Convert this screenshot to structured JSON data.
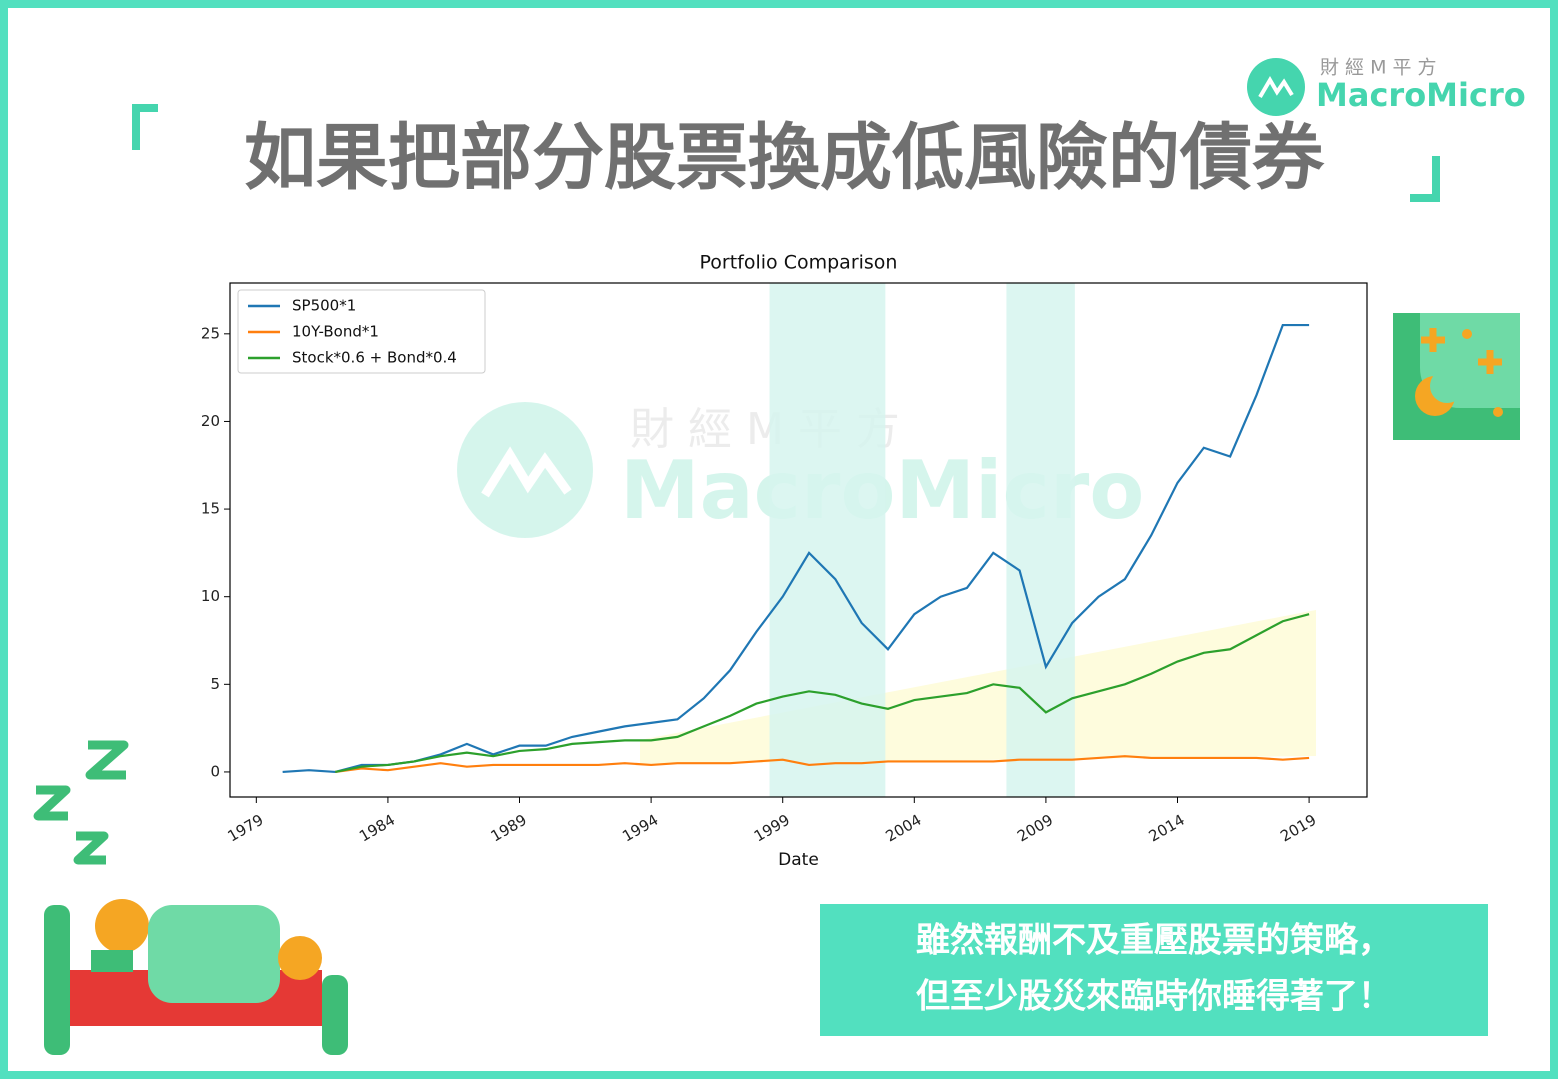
{
  "header": {
    "title": "如果把部分股票換成低風險的債券",
    "logo_cn": "財 經 M 平 方",
    "logo_en": "MacroMicro"
  },
  "caption": {
    "lines": [
      "雖然報酬不及重壓股票的策略，",
      "但至少股災來臨時你睡得著了！"
    ]
  },
  "chart_data": {
    "type": "line",
    "title": "Portfolio Comparison",
    "x_label": "Date",
    "x": [
      1980,
      1981,
      1982,
      1983,
      1984,
      1985,
      1986,
      1987,
      1988,
      1989,
      1990,
      1991,
      1992,
      1993,
      1994,
      1995,
      1996,
      1997,
      1998,
      1999,
      2000,
      2001,
      2002,
      2003,
      2004,
      2005,
      2006,
      2007,
      2008,
      2009,
      2010,
      2011,
      2012,
      2013,
      2014,
      2015,
      2016,
      2017,
      2018,
      2019
    ],
    "series": [
      {
        "name": "SP500*1",
        "color": "#1f77b4",
        "values": [
          0,
          0.1,
          0,
          0.4,
          0.4,
          0.6,
          1.0,
          1.6,
          1.0,
          1.5,
          1.5,
          2.0,
          2.3,
          2.6,
          2.8,
          3.0,
          4.2,
          5.8,
          8.0,
          10.0,
          12.5,
          11.0,
          8.5,
          7.0,
          9.0,
          10.0,
          10.5,
          12.5,
          11.5,
          6.0,
          8.5,
          10.0,
          11.0,
          13.5,
          16.5,
          18.5,
          18.0,
          21.5,
          25.5,
          25.5
        ]
      },
      {
        "name": "10Y-Bond*1",
        "color": "#ff7f0e",
        "values": [
          null,
          null,
          0,
          0.2,
          0.1,
          0.3,
          0.5,
          0.3,
          0.4,
          0.4,
          0.4,
          0.4,
          0.4,
          0.5,
          0.4,
          0.5,
          0.5,
          0.5,
          0.6,
          0.7,
          0.4,
          0.5,
          0.5,
          0.6,
          0.6,
          0.6,
          0.6,
          0.6,
          0.7,
          0.7,
          0.7,
          0.8,
          0.9,
          0.8,
          0.8,
          0.8,
          0.8,
          0.8,
          0.7,
          0.8
        ]
      },
      {
        "name": "Stock*0.6 + Bond*0.4",
        "color": "#2ca02c",
        "values": [
          null,
          null,
          0,
          0.3,
          0.4,
          0.6,
          0.9,
          1.1,
          0.9,
          1.2,
          1.3,
          1.6,
          1.7,
          1.8,
          1.8,
          2.0,
          2.6,
          3.2,
          3.9,
          4.3,
          4.6,
          4.4,
          3.9,
          3.6,
          4.1,
          4.3,
          4.5,
          5.0,
          4.8,
          3.4,
          4.2,
          4.6,
          5.0,
          5.6,
          6.3,
          6.8,
          7.0,
          7.8,
          8.6,
          9.0
        ]
      }
    ],
    "shaded_spans": [
      [
        1998.5,
        2002.9
      ],
      [
        2007.5,
        2010.1
      ]
    ],
    "shade_color": "#d6f5ee",
    "xlim": [
      1978,
      2021.2
    ],
    "ylim": [
      -1.43,
      27.9
    ],
    "xticks": [
      1979,
      1984,
      1989,
      1994,
      1999,
      2004,
      2009,
      2014,
      2019
    ],
    "yticks": [
      0,
      5,
      10,
      15,
      20,
      25
    ],
    "legend": "upper left",
    "grid": false
  }
}
